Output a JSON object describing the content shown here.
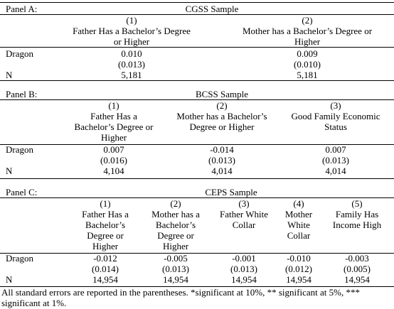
{
  "panels": [
    {
      "label": "Panel A:",
      "sample": "CGSS Sample",
      "row_labels": [
        "Dragon",
        "N"
      ],
      "columns": [
        {
          "number": "(1)",
          "header": "Father Has a Bachelor’s Degree or Higher",
          "coef": "0.010",
          "se": "(0.013)",
          "n": "5,181"
        },
        {
          "number": "(2)",
          "header": "Mother has a Bachelor’s Degree or Higher",
          "coef": "0.009",
          "se": "(0.010)",
          "n": "5,181"
        }
      ]
    },
    {
      "label": "Panel B:",
      "sample": "BCSS Sample",
      "row_labels": [
        "Dragon",
        "N"
      ],
      "columns": [
        {
          "number": "(1)",
          "header": "Father Has a Bachelor’s Degree or Higher",
          "coef": "0.007",
          "se": "(0.016)",
          "n": "4,104"
        },
        {
          "number": "(2)",
          "header": "Mother has a Bachelor’s Degree or Higher",
          "coef": "-0.014",
          "se": "(0.013)",
          "n": "4,014"
        },
        {
          "number": "(3)",
          "header": "Good Family Economic Status",
          "coef": "0.007",
          "se": "(0.013)",
          "n": "4,014"
        }
      ]
    },
    {
      "label": "Panel C:",
      "sample": "CEPS Sample",
      "row_labels": [
        "Dragon",
        "N"
      ],
      "columns": [
        {
          "number": "(1)",
          "header": "Father Has a Bachelor’s Degree or Higher",
          "coef": "-0.012",
          "se": "(0.014)",
          "n": "14,954"
        },
        {
          "number": "(2)",
          "header": "Mother has a Bachelor’s Degree or Higher",
          "coef": "-0.005",
          "se": "(0.013)",
          "n": "14,954"
        },
        {
          "number": "(3)",
          "header": "Father White Collar",
          "coef": "-0.001",
          "se": "(0.013)",
          "n": "14,954"
        },
        {
          "number": "(4)",
          "header": "Mother White Collar",
          "coef": "-0.010",
          "se": "(0.012)",
          "n": "14,954"
        },
        {
          "number": "(5)",
          "header": "Family Has Income High",
          "coef": "-0.003",
          "se": "(0.005)",
          "n": "14,954"
        }
      ]
    }
  ],
  "footnote": "All standard errors are reported in the parentheses. *significant at 10%, ** significant at 5%, *** significant at 1%."
}
